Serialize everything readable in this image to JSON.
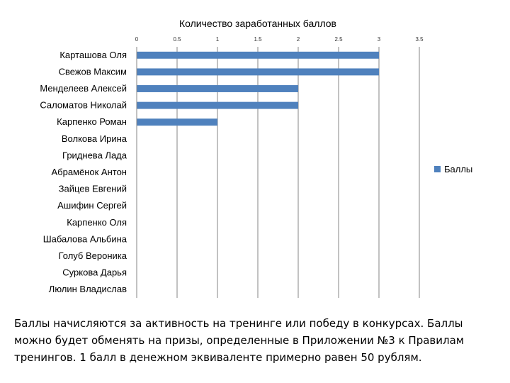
{
  "chart_data": {
    "type": "bar",
    "orientation": "horizontal",
    "title": "Количество заработанных баллов",
    "categories": [
      "Карташова Оля",
      "Свежов Максим",
      "Менделеев Алексей",
      "Саломатов Николай",
      "Карпенко Роман",
      "Волкова Ирина",
      "Гриднева Лада",
      "Абрамёнок Антон",
      "Зайцев Евгений",
      "Ашифин Сергей",
      "Карпенко Оля",
      "Шабалова Альбина",
      "Голуб Вероника",
      "Суркова Дарья",
      "Люлин Владислав"
    ],
    "series": [
      {
        "name": "Баллы",
        "values": [
          3,
          3,
          2,
          2,
          1,
          0,
          0,
          0,
          0,
          0,
          0,
          0,
          0,
          0,
          0
        ]
      }
    ],
    "xlim": [
      0,
      3.5
    ],
    "xticks": [
      "0",
      "0.5",
      "1",
      "1.5",
      "2",
      "2.5",
      "3",
      "3.5"
    ],
    "x_axis_position": "top",
    "grid": true,
    "legend_position": "right",
    "bar_color": "#4F81BD"
  },
  "note": {
    "lines": [
      "Баллы начисляются за активность на тренинге или победу в конкурсах. Баллы",
      "можно будет обменять на призы, определенные в Приложении №3 к Правилам",
      "тренингов. 1 балл в денежном эквиваленте примерно равен 50 рублям."
    ]
  }
}
